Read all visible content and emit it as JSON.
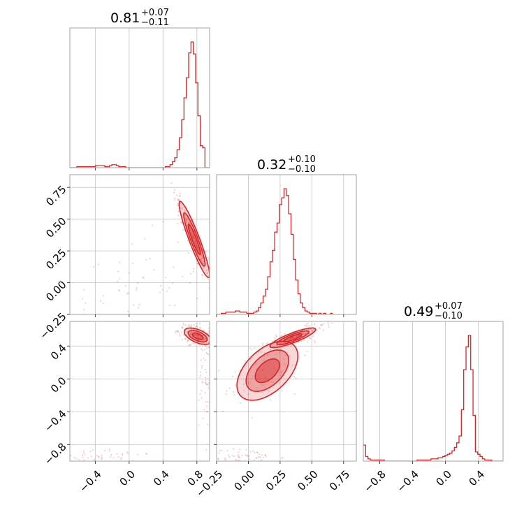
{
  "chart_data": {
    "type": "scatter",
    "kind": "corner-plot",
    "color": "#d62728",
    "grid": true,
    "parameters": [
      {
        "range": [
          -0.7,
          0.95
        ],
        "ticks": [
          -0.4,
          0.0,
          0.4,
          0.8
        ],
        "tick_labels": [
          "−0.4",
          "0.0",
          "0.4",
          "0.8"
        ]
      },
      {
        "range": [
          -0.25,
          0.85
        ],
        "ticks": [
          -0.25,
          0.0,
          0.25,
          0.5,
          0.75
        ],
        "tick_labels": [
          "−0.25",
          "0.00",
          "0.25",
          "0.50",
          "0.75"
        ]
      },
      {
        "range": [
          -1.0,
          0.7
        ],
        "ticks": [
          -0.8,
          -0.4,
          0.0,
          0.4
        ],
        "tick_labels": [
          "−0.8",
          "−0.4",
          "0.0",
          "0.4"
        ]
      }
    ],
    "titles": [
      {
        "main": "0.81",
        "plus": "+0.07",
        "minus": "−0.11"
      },
      {
        "main": "0.32",
        "plus": "+0.10",
        "minus": "−0.10"
      },
      {
        "main": "0.49",
        "plus": "+0.07",
        "minus": "−0.10"
      }
    ],
    "histograms": [
      {
        "start": -0.7,
        "step": 0.0275,
        "counts": [
          0,
          0,
          0,
          1,
          1,
          1,
          1,
          1,
          1,
          1,
          1,
          2,
          2,
          2,
          2,
          1,
          1,
          2,
          3,
          3,
          2,
          1,
          1,
          1,
          0,
          0,
          0,
          0,
          0,
          0,
          0,
          0,
          0,
          0,
          0,
          0,
          0,
          0,
          0,
          0,
          0,
          1,
          1,
          3,
          6,
          10,
          18,
          30,
          48,
          70,
          90,
          115,
          126,
          114,
          85,
          52,
          22,
          20,
          0,
          0
        ]
      },
      {
        "start": -0.25,
        "step": 0.0183,
        "counts": [
          0,
          0,
          1,
          1,
          2,
          2,
          2,
          2,
          3,
          3,
          2,
          2,
          2,
          1,
          1,
          1,
          2,
          3,
          6,
          10,
          16,
          22,
          33,
          46,
          56,
          72,
          80,
          96,
          102,
          110,
          104,
          88,
          70,
          48,
          30,
          18,
          10,
          6,
          3,
          2,
          1,
          1,
          1,
          0,
          1,
          0,
          1,
          0,
          0,
          1
        ]
      },
      {
        "start": -1.0,
        "step": 0.0284,
        "counts": [
          14,
          4,
          2,
          1,
          1,
          1,
          1,
          1,
          1,
          0,
          0,
          0,
          0,
          0,
          0,
          0,
          0,
          0,
          0,
          0,
          0,
          0,
          0,
          1,
          1,
          1,
          1,
          1,
          1,
          2,
          2,
          2,
          3,
          3,
          4,
          5,
          6,
          7,
          9,
          12,
          16,
          22,
          45,
          80,
          100,
          110,
          80,
          40,
          8,
          6,
          4,
          2,
          1,
          1,
          1,
          0,
          0,
          0,
          0,
          0
        ]
      }
    ],
    "pairs": [
      {
        "x": 0,
        "y": 1,
        "ellipses": [
          {
            "cx": 0.77,
            "cy": 0.34,
            "sx": 0.09,
            "sy": 0.15,
            "rho": -0.93
          },
          {
            "cx": 0.0,
            "cy": -0.02,
            "sx": 0.32,
            "sy": 0.14,
            "rho": 0.2
          }
        ]
      },
      {
        "x": 0,
        "y": 2,
        "ellipses": [
          {
            "cx": 0.81,
            "cy": 0.52,
            "sx": 0.08,
            "sy": 0.05,
            "rho": -0.55
          },
          {
            "cx": 0.91,
            "cy": 0.1,
            "sx": 0.03,
            "sy": 0.25,
            "rho": 0.0
          },
          {
            "cx": -0.3,
            "cy": -0.95,
            "sx": 0.25,
            "sy": 0.04,
            "rho": -0.4
          }
        ]
      },
      {
        "x": 1,
        "y": 2,
        "ellipses": [
          {
            "cx": 0.35,
            "cy": 0.5,
            "sx": 0.09,
            "sy": 0.06,
            "rho": 0.85
          },
          {
            "cx": 0.15,
            "cy": 0.1,
            "sx": 0.12,
            "sy": 0.18,
            "rho": 0.5
          },
          {
            "cx": -0.05,
            "cy": -0.95,
            "sx": 0.1,
            "sy": 0.04,
            "rho": 0.0
          }
        ]
      }
    ]
  }
}
